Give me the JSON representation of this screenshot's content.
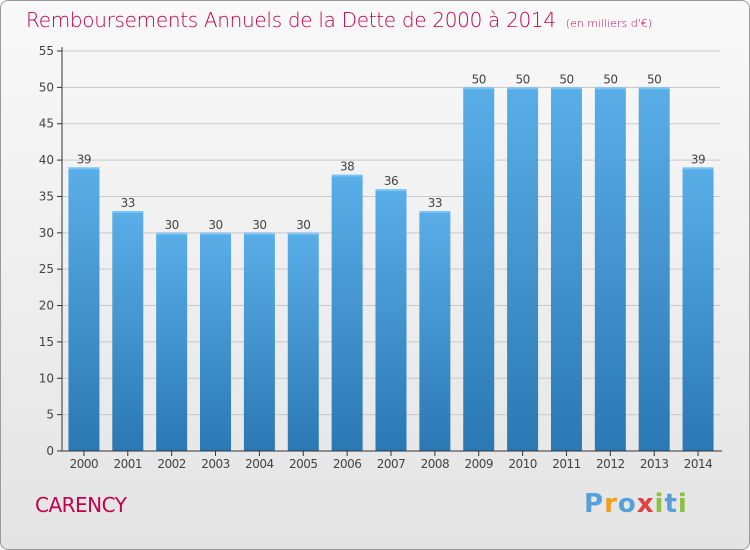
{
  "title": {
    "main": "Remboursements Annuels de la Dette de 2000 à 2014",
    "unit": "(en milliers d'€)"
  },
  "town": "CARENCY",
  "logo": [
    "P",
    "r",
    "o",
    "x",
    "i",
    "t",
    "i"
  ],
  "colors": {
    "title": "#c5004d",
    "bar_top": "#5aaee8",
    "bar_bottom": "#2a78b4",
    "grid": "#c9c9c9",
    "axis": "#333333",
    "label": "#444444"
  },
  "chart_data": {
    "type": "bar",
    "title": "Remboursements Annuels de la Dette de 2000 à 2014",
    "xlabel": "",
    "ylabel": "",
    "ylim": [
      0,
      55
    ],
    "yticks": [
      0,
      5,
      10,
      15,
      20,
      25,
      30,
      35,
      40,
      45,
      50,
      55
    ],
    "categories": [
      "2000",
      "2001",
      "2002",
      "2003",
      "2004",
      "2005",
      "2006",
      "2007",
      "2008",
      "2009",
      "2010",
      "2011",
      "2012",
      "2013",
      "2014"
    ],
    "values": [
      39,
      33,
      30,
      30,
      30,
      30,
      38,
      36,
      33,
      50,
      50,
      50,
      50,
      50,
      39
    ],
    "grid": true,
    "legend": "none"
  }
}
